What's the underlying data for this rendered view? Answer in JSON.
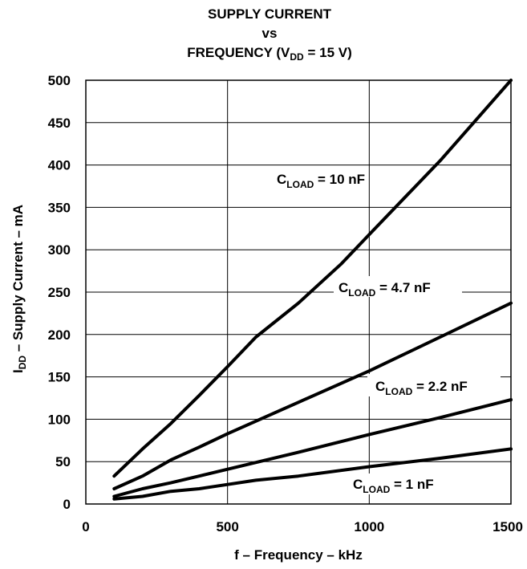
{
  "chart_data": {
    "type": "line",
    "title": {
      "line1": "SUPPLY CURRENT",
      "line2": "vs",
      "line3_main": "FREQUENCY (V",
      "line3_sub": "DD",
      "line3_rest": " = 15 V)"
    },
    "xlabel": "f – Frequency – kHz",
    "ylabel": {
      "main": "I",
      "sub": "DD",
      "rest": " – Supply Current – mA"
    },
    "xlim": [
      0,
      1500
    ],
    "ylim": [
      0,
      500
    ],
    "x_ticks": [
      "0",
      "500",
      "1000",
      "1500"
    ],
    "y_ticks": [
      "0",
      "50",
      "100",
      "150",
      "200",
      "250",
      "300",
      "350",
      "400",
      "450",
      "500"
    ],
    "grid": true,
    "series": [
      {
        "name": "CLOAD = 10 nF",
        "label": {
          "main": "C",
          "sub": "LOAD",
          "rest": " = 10 nF"
        },
        "x": [
          100,
          200,
          300,
          400,
          500,
          600,
          750,
          900,
          1000,
          1250,
          1500
        ],
        "y": [
          33,
          65,
          95,
          128,
          162,
          197,
          237,
          283,
          318,
          405,
          500
        ]
      },
      {
        "name": "CLOAD = 4.7 nF",
        "label": {
          "main": "C",
          "sub": "LOAD",
          "rest": " = 4.7 nF"
        },
        "x": [
          100,
          200,
          300,
          400,
          500,
          750,
          1000,
          1250,
          1500
        ],
        "y": [
          18,
          33,
          52,
          67,
          83,
          120,
          157,
          197,
          237
        ]
      },
      {
        "name": "CLOAD = 2.2 nF",
        "label": {
          "main": "C",
          "sub": "LOAD",
          "rest": " = 2.2 nF"
        },
        "x": [
          100,
          200,
          300,
          400,
          500,
          750,
          1000,
          1250,
          1500
        ],
        "y": [
          9,
          18,
          25,
          33,
          41,
          61,
          82,
          102,
          123
        ]
      },
      {
        "name": "CLOAD = 1 nF",
        "label": {
          "main": "C",
          "sub": "LOAD",
          "rest": " = 1 nF"
        },
        "x": [
          100,
          200,
          300,
          400,
          500,
          600,
          750,
          1000,
          1250,
          1500
        ],
        "y": [
          6,
          9,
          15,
          18,
          23,
          28,
          33,
          44,
          54,
          65
        ]
      }
    ]
  }
}
